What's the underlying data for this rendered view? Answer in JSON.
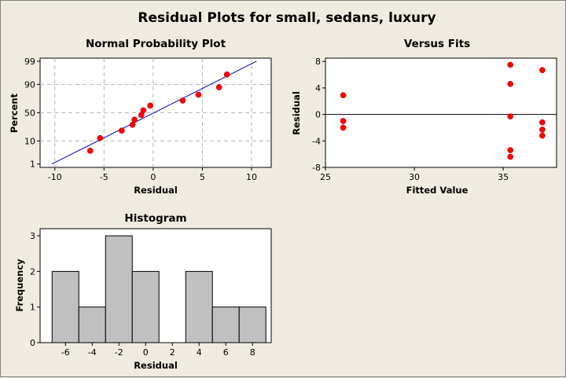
{
  "title": "Residual Plots for small, sedans, luxury",
  "chart_data": [
    {
      "type": "scatter",
      "title": "Normal Probability Plot",
      "xlabel": "Residual",
      "ylabel": "Percent",
      "xlim": [
        -11.5,
        12
      ],
      "xticks": [
        -10,
        -5,
        0,
        5,
        10
      ],
      "yticks": [
        1,
        10,
        50,
        90,
        99
      ],
      "y_scale": "normal probability",
      "grid": true,
      "points": [
        {
          "x": -6.4,
          "y": 4.2
        },
        {
          "x": -5.4,
          "y": 12.5
        },
        {
          "x": -3.2,
          "y": 20.8
        },
        {
          "x": -2.1,
          "y": 29.2
        },
        {
          "x": -1.9,
          "y": 37.5
        },
        {
          "x": -1.2,
          "y": 45.8
        },
        {
          "x": -1.0,
          "y": 54.2
        },
        {
          "x": -0.3,
          "y": 62.5
        },
        {
          "x": 3.0,
          "y": 70.8
        },
        {
          "x": 4.6,
          "y": 79.2
        },
        {
          "x": 6.7,
          "y": 87.5
        },
        {
          "x": 7.5,
          "y": 95.8
        }
      ],
      "fit_line": {
        "x": [
          -10.3,
          10.5
        ],
        "y": [
          1,
          99
        ]
      }
    },
    {
      "type": "scatter",
      "title": "Versus Fits",
      "xlabel": "Fitted Value",
      "ylabel": "Residual",
      "xlim": [
        25,
        38
      ],
      "ylim": [
        -8,
        8.5
      ],
      "xticks": [
        25,
        30,
        35
      ],
      "yticks": [
        -8,
        -4,
        0,
        4,
        8
      ],
      "reference_line": 0,
      "points": [
        {
          "x": 26.0,
          "y": 2.9
        },
        {
          "x": 26.0,
          "y": -1.0
        },
        {
          "x": 26.0,
          "y": -2.0
        },
        {
          "x": 35.4,
          "y": 7.5
        },
        {
          "x": 35.4,
          "y": 4.6
        },
        {
          "x": 35.4,
          "y": -0.3
        },
        {
          "x": 35.4,
          "y": -5.4
        },
        {
          "x": 35.4,
          "y": -6.4
        },
        {
          "x": 37.2,
          "y": 6.7
        },
        {
          "x": 37.2,
          "y": -1.2
        },
        {
          "x": 37.2,
          "y": -2.3
        },
        {
          "x": 37.2,
          "y": -3.2
        }
      ]
    },
    {
      "type": "bar",
      "title": "Histogram",
      "xlabel": "Residual",
      "ylabel": "Frequency",
      "bin_centers": [
        -6,
        -4,
        -2,
        0,
        2,
        4,
        6,
        8
      ],
      "bin_width": 2,
      "values": [
        2,
        1,
        3,
        2,
        0,
        2,
        1,
        1
      ],
      "xticks": [
        -6,
        -4,
        -2,
        0,
        2,
        4,
        6,
        8
      ],
      "yticks": [
        0,
        1,
        2,
        3
      ],
      "ylim": [
        0,
        3.2
      ],
      "bar_color": "#c0c0c0"
    }
  ]
}
